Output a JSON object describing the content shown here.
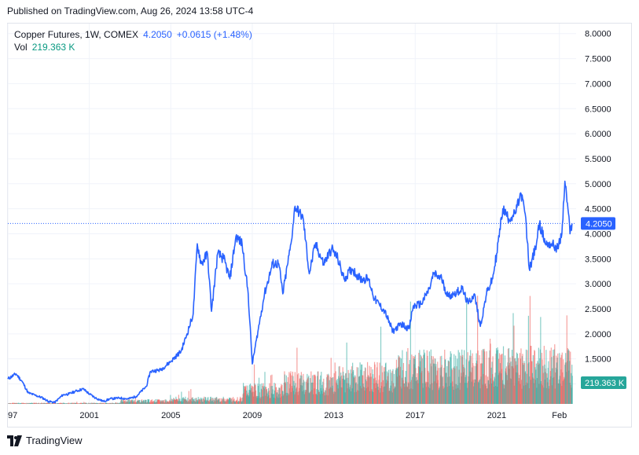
{
  "header": {
    "published": "Published on TradingView.com, Aug 26, 2024 13:58 UTC-4"
  },
  "legend": {
    "symbol": "Copper Futures, 1W, COMEX",
    "price": "4.2050",
    "change": "+0.0615 (+1.48%)",
    "vol_label": "Vol",
    "vol_value": "219.363 K"
  },
  "badges": {
    "price": "4.2050",
    "volume": "219.363 K"
  },
  "footer": {
    "brand": "TradingView",
    "logo_icon": "tradingview-logo-icon"
  },
  "colors": {
    "line": "#2962ff",
    "vol_up": "#26a69a",
    "vol_down": "#ef5350",
    "grid": "#f0f3fa",
    "price_badge": "#2962ff",
    "vol_badge": "#26a69a"
  },
  "chart_data": {
    "type": "line",
    "title": "Copper Futures, 1W, COMEX",
    "grid": true,
    "y_ticks": [
      "8.0000",
      "7.5000",
      "7.0000",
      "6.5000",
      "6.0000",
      "5.5000",
      "5.0000",
      "4.5000",
      "4.0000",
      "3.5000",
      "3.0000",
      "2.5000",
      "2.0000",
      "1.5000",
      "1.0000"
    ],
    "ylim": [
      0.6,
      8.2
    ],
    "x_ticks": [
      {
        "label": "97",
        "t": 1997.0
      },
      {
        "label": "2001",
        "t": 2001.0
      },
      {
        "label": "2005",
        "t": 2005.0
      },
      {
        "label": "2009",
        "t": 2009.0
      },
      {
        "label": "2013",
        "t": 2013.0
      },
      {
        "label": "2017",
        "t": 2017.0
      },
      {
        "label": "2021",
        "t": 2021.0
      },
      {
        "label": "Feb",
        "t": 2024.08
      }
    ],
    "xlim": [
      1997.0,
      2024.9
    ],
    "last_price": 4.205,
    "series": [
      {
        "values": [
          [
            1997.0,
            1.1
          ],
          [
            1997.4,
            1.2
          ],
          [
            1997.7,
            1.05
          ],
          [
            1998.0,
            0.82
          ],
          [
            1998.3,
            0.78
          ],
          [
            1998.7,
            0.72
          ],
          [
            1999.0,
            0.65
          ],
          [
            1999.3,
            0.63
          ],
          [
            1999.7,
            0.78
          ],
          [
            2000.0,
            0.8
          ],
          [
            2000.3,
            0.85
          ],
          [
            2000.7,
            0.9
          ],
          [
            2001.0,
            0.8
          ],
          [
            2001.3,
            0.72
          ],
          [
            2001.7,
            0.65
          ],
          [
            2002.0,
            0.7
          ],
          [
            2002.5,
            0.72
          ],
          [
            2002.9,
            0.7
          ],
          [
            2003.3,
            0.75
          ],
          [
            2003.8,
            0.95
          ],
          [
            2004.0,
            1.25
          ],
          [
            2004.5,
            1.28
          ],
          [
            2005.0,
            1.45
          ],
          [
            2005.5,
            1.65
          ],
          [
            2005.8,
            2.0
          ],
          [
            2006.1,
            2.4
          ],
          [
            2006.3,
            3.8
          ],
          [
            2006.5,
            3.4
          ],
          [
            2006.8,
            3.6
          ],
          [
            2007.0,
            2.45
          ],
          [
            2007.3,
            3.6
          ],
          [
            2007.6,
            3.5
          ],
          [
            2007.9,
            3.1
          ],
          [
            2008.2,
            3.95
          ],
          [
            2008.5,
            3.8
          ],
          [
            2008.8,
            2.8
          ],
          [
            2009.0,
            1.4
          ],
          [
            2009.3,
            2.1
          ],
          [
            2009.6,
            2.8
          ],
          [
            2010.0,
            3.4
          ],
          [
            2010.3,
            3.4
          ],
          [
            2010.5,
            2.8
          ],
          [
            2010.9,
            3.8
          ],
          [
            2011.1,
            4.55
          ],
          [
            2011.5,
            4.3
          ],
          [
            2011.8,
            3.2
          ],
          [
            2012.1,
            3.8
          ],
          [
            2012.5,
            3.4
          ],
          [
            2012.9,
            3.7
          ],
          [
            2013.2,
            3.5
          ],
          [
            2013.5,
            3.1
          ],
          [
            2013.9,
            3.3
          ],
          [
            2014.3,
            3.1
          ],
          [
            2014.7,
            3.1
          ],
          [
            2015.0,
            2.7
          ],
          [
            2015.5,
            2.45
          ],
          [
            2015.9,
            2.05
          ],
          [
            2016.3,
            2.2
          ],
          [
            2016.7,
            2.1
          ],
          [
            2016.9,
            2.55
          ],
          [
            2017.3,
            2.6
          ],
          [
            2017.7,
            2.9
          ],
          [
            2017.9,
            3.2
          ],
          [
            2018.3,
            3.1
          ],
          [
            2018.6,
            2.75
          ],
          [
            2018.9,
            2.8
          ],
          [
            2019.3,
            2.9
          ],
          [
            2019.6,
            2.6
          ],
          [
            2019.9,
            2.8
          ],
          [
            2020.2,
            2.15
          ],
          [
            2020.5,
            2.8
          ],
          [
            2020.8,
            3.1
          ],
          [
            2021.0,
            3.6
          ],
          [
            2021.3,
            4.5
          ],
          [
            2021.6,
            4.3
          ],
          [
            2021.9,
            4.4
          ],
          [
            2022.2,
            4.8
          ],
          [
            2022.4,
            4.4
          ],
          [
            2022.6,
            3.3
          ],
          [
            2022.9,
            3.7
          ],
          [
            2023.1,
            4.2
          ],
          [
            2023.4,
            3.8
          ],
          [
            2023.7,
            3.8
          ],
          [
            2024.0,
            3.7
          ],
          [
            2024.2,
            4.0
          ],
          [
            2024.35,
            5.05
          ],
          [
            2024.5,
            4.5
          ],
          [
            2024.6,
            4.0
          ],
          [
            2024.7,
            4.205
          ]
        ]
      }
    ],
    "volume": {
      "last": "219.363 K",
      "note": "volume histogram, rising from near zero in 1997 to ~2000K peaks in 2017-2024",
      "segments": [
        {
          "from": 1997.0,
          "to": 2002.5,
          "level": 0.02
        },
        {
          "from": 2002.5,
          "to": 2005.0,
          "level": 0.08
        },
        {
          "from": 2005.0,
          "to": 2008.5,
          "level": 0.12
        },
        {
          "from": 2008.5,
          "to": 2010.5,
          "level": 0.35
        },
        {
          "from": 2010.5,
          "to": 2013.0,
          "level": 0.55
        },
        {
          "from": 2013.0,
          "to": 2016.0,
          "level": 0.7
        },
        {
          "from": 2016.0,
          "to": 2020.0,
          "level": 0.9
        },
        {
          "from": 2020.0,
          "to": 2024.7,
          "level": 1.0
        }
      ]
    }
  }
}
